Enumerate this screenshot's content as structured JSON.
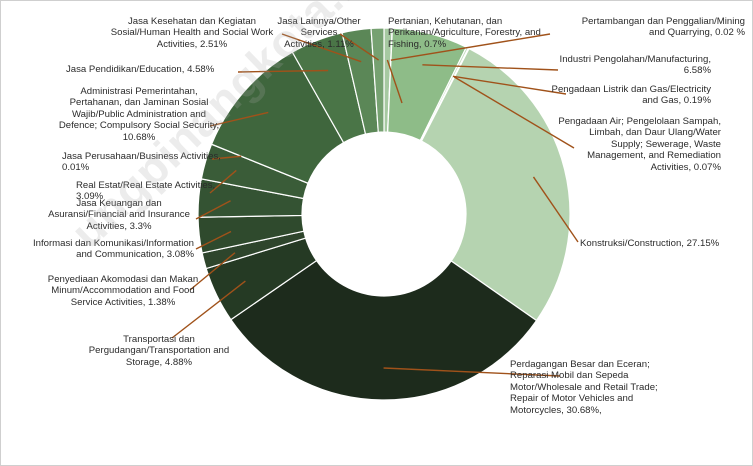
{
  "chart_data": {
    "type": "pie",
    "variant": "donut",
    "slices": [
      {
        "label": "Pertanian, Kehutanan, dan\nPerikanan/Agriculture, Forestry, and\nFishing, 0.7%",
        "value": 0.7,
        "color": "#a6c9a1"
      },
      {
        "label": "Pertambangan dan Penggalian/Mining\nand Quarrying, 0.02 %",
        "value": 0.02,
        "color": "#a6c9a1"
      },
      {
        "label": "Industri Pengolahan/Manufacturing,\n6.58%",
        "value": 6.58,
        "color": "#8ebc88"
      },
      {
        "label": "Pengadaan Listrik dan Gas/Electricity\nand Gas, 0.19%",
        "value": 0.19,
        "color": "#c1dcbd"
      },
      {
        "label": "Pengadaan Air; Pengelolaan Sampah,\nLimbah, dan Daur Ulang/Water\nSupply; Sewerage, Waste\nManagement, and Remediation\nActivities, 0.07%",
        "value": 0.07,
        "color": "#c1dcbd"
      },
      {
        "label": "Konstruksi/Construction, 27.15%",
        "value": 27.15,
        "color": "#b5d3b0"
      },
      {
        "label": "Perdagangan Besar dan Eceran;\nReparasi Mobil dan Sepeda\nMotor/Wholesale and Retail Trade;\nRepair of Motor Vehicles and\nMotorcycles, 30.68%,",
        "value": 30.68,
        "color": "#1d2b1c"
      },
      {
        "label": "Transportasi dan\nPergudangan/Transportation and\nStorage, 4.88%",
        "value": 4.88,
        "color": "#253a24"
      },
      {
        "label": "Penyediaan Akomodasi dan Makan\nMinum/Accommodation and Food\nService Activities, 1.38%",
        "value": 1.38,
        "color": "#2e452c"
      },
      {
        "label": "Informasi dan Komunikasi/Information\nand Communication, 3.08%",
        "value": 3.08,
        "color": "#2f4a2d"
      },
      {
        "label": "Jasa Keuangan dan\nAsuransi/Financial and Insurance\nActivities, 3.3%",
        "value": 3.3,
        "color": "#345333"
      },
      {
        "label": "Real Estat/Real Estate Activities,\n3.09%",
        "value": 3.09,
        "color": "#3a5c38"
      },
      {
        "label": "Jasa Perusahaan/Business Activities,\n0.01%",
        "value": 0.01,
        "color": "#3a5c38"
      },
      {
        "label": "Administrasi Pemerintahan,\nPertahanan, dan Jaminan Sosial\nWajib/Public Administration and\nDefence; Compulsory Social Security,\n10.68%",
        "value": 10.68,
        "color": "#3f663d"
      },
      {
        "label": "Jasa Pendidikan/Education, 4.58%",
        "value": 4.58,
        "color": "#4a7547"
      },
      {
        "label": "Jasa Kesehatan dan Kegiatan\nSosial/Human Health and Social Work\nActivities, 2.51%",
        "value": 2.51,
        "color": "#5b8757"
      },
      {
        "label": "Jasa Lainnya/Other Services\nActivities, 1.11%",
        "value": 1.11,
        "color": "#76a171"
      }
    ],
    "leader_line_color": "#a0521a"
  },
  "watermark": "ungpinangkota.bps.go.id"
}
